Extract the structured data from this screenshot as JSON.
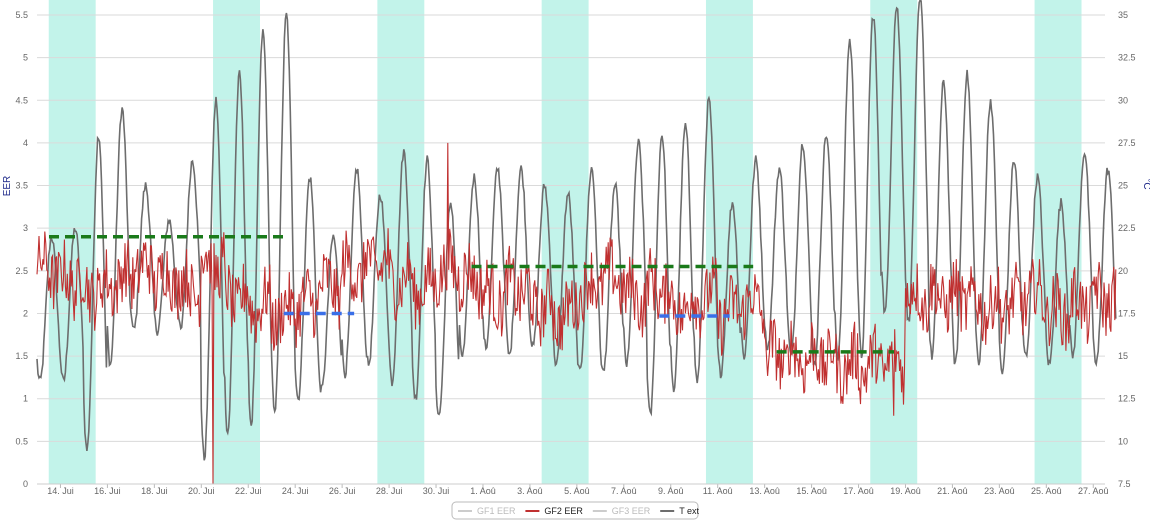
{
  "chart_data": {
    "type": "line",
    "x_start": "2013-07-13",
    "x_end": "2013-08-27",
    "x_ticks": [
      "14. Jui",
      "16. Jui",
      "18. Jui",
      "20. Jui",
      "22. Jui",
      "24. Jui",
      "26. Jui",
      "28. Jui",
      "30. Jui",
      "1. Aoû",
      "3. Aoû",
      "5. Aoû",
      "7. Aoû",
      "9. Aoû",
      "11. Aoû",
      "13. Aoû",
      "15. Aoû",
      "17. Aoû",
      "19. Aoû",
      "21. Aoû",
      "23. Aoû",
      "25. Aoû",
      "27. Aoû"
    ],
    "y_left": {
      "label": "EER",
      "min": 0,
      "max": 5.5,
      "ticks": [
        "0",
        "0.5",
        "1",
        "1.5",
        "2",
        "2.5",
        "3",
        "3.5",
        "4",
        "4.5",
        "5",
        "5.5"
      ]
    },
    "y_right": {
      "label": "°C",
      "min": 7.5,
      "max": 35,
      "ticks": [
        "7.5",
        "10",
        "12.5",
        "15",
        "17.5",
        "20",
        "22.5",
        "25",
        "27.5",
        "30",
        "32.5",
        "35"
      ]
    },
    "grid": true,
    "weekend_bands": [
      {
        "from": "2013-07-13",
        "to": "2013-07-15"
      },
      {
        "from": "2013-07-20",
        "to": "2013-07-22"
      },
      {
        "from": "2013-07-27",
        "to": "2013-07-29"
      },
      {
        "from": "2013-08-03",
        "to": "2013-08-05"
      },
      {
        "from": "2013-08-10",
        "to": "2013-08-12"
      },
      {
        "from": "2013-08-17",
        "to": "2013-08-19"
      },
      {
        "from": "2013-08-24",
        "to": "2013-08-26"
      }
    ],
    "reference_lines": [
      {
        "color": "#1a7a1a",
        "from": "2013-07-13",
        "to": "2013-07-23",
        "value": 2.9
      },
      {
        "color": "#3a6fe8",
        "from": "2013-07-23",
        "to": "2013-07-26",
        "value": 2.0
      },
      {
        "color": "#1a7a1a",
        "from": "2013-07-31",
        "to": "2013-08-12",
        "value": 2.55
      },
      {
        "color": "#3a6fe8",
        "from": "2013-08-08",
        "to": "2013-08-11",
        "value": 1.97
      },
      {
        "color": "#1a7a1a",
        "from": "2013-08-13",
        "to": "2013-08-18",
        "value": 1.55
      }
    ],
    "series": [
      {
        "name": "GF1 EER",
        "color": "#aaaaaa",
        "visible": false
      },
      {
        "name": "GF2 EER",
        "color": "#c03030",
        "visible": true,
        "axis": "left",
        "daily_mean": [
          2.5,
          2.4,
          2.3,
          2.4,
          2.5,
          2.4,
          2.3,
          2.6,
          2.2,
          2.1,
          2.0,
          2.1,
          2.3,
          2.5,
          2.6,
          2.4,
          2.3,
          2.5,
          2.4,
          2.2,
          2.3,
          2.1,
          2.0,
          2.3,
          2.4,
          2.2,
          2.3,
          2.1,
          2.2,
          2.0,
          2.1,
          1.5,
          1.5,
          1.5,
          1.4,
          1.4,
          1.4,
          2.2,
          2.2,
          2.2,
          2.1,
          2.1,
          2.2,
          2.0,
          2.1,
          2.2
        ],
        "noise": 0.18,
        "spikes": [
          {
            "date": "2013-07-20",
            "value": 0.0
          },
          {
            "date": "2013-07-30",
            "value": 4.0
          },
          {
            "date": "2013-08-18",
            "value": 0.8
          }
        ]
      },
      {
        "name": "GF3 EER",
        "color": "#aaaaaa",
        "visible": false
      },
      {
        "name": "T ext",
        "color": "#6d6d6d",
        "visible": true,
        "axis": "right",
        "daily_min": [
          13.5,
          13.5,
          9.5,
          14.5,
          16.5,
          16.5,
          16.5,
          9.0,
          10.5,
          11.0,
          11.5,
          12.5,
          13.0,
          14.0,
          14.5,
          13.5,
          12.5,
          11.5,
          15.0,
          15.5,
          15.0,
          15.5,
          14.5,
          14.0,
          14.0,
          14.5,
          11.5,
          13.0,
          13.5,
          14.0,
          15.0,
          15.5,
          15.0,
          14.5,
          15.0,
          15.0,
          17.5,
          17.0,
          15.0,
          14.5,
          14.5,
          14.0,
          15.0,
          14.5,
          15.0,
          14.5
        ],
        "daily_max": [
          22.0,
          22.5,
          28.0,
          29.5,
          25.0,
          23.0,
          26.5,
          30.0,
          31.5,
          34.0,
          35.0,
          25.5,
          22.0,
          26.0,
          24.5,
          27.0,
          26.5,
          24.0,
          25.5,
          26.0,
          26.0,
          25.0,
          24.5,
          26.0,
          25.0,
          27.5,
          28.0,
          28.5,
          30.0,
          24.0,
          26.5,
          26.0,
          27.5,
          28.0,
          33.5,
          35.0,
          35.5,
          36.0,
          31.0,
          31.5,
          30.0,
          26.5,
          25.5,
          24.0,
          27.0,
          26.0
        ]
      }
    ]
  }
}
